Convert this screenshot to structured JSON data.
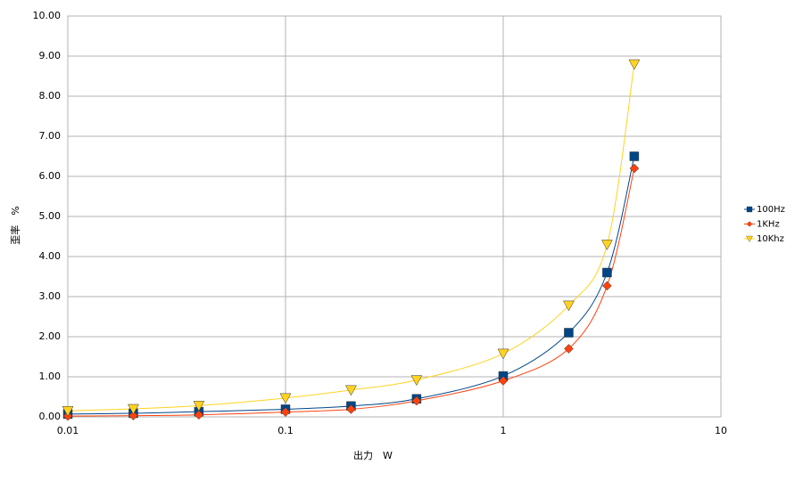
{
  "chart_data": {
    "type": "line",
    "x_label": "出力　W",
    "y_label": "歪率　%",
    "x": [
      0.01,
      0.02,
      0.04,
      0.1,
      0.2,
      0.4,
      1,
      2,
      3,
      4
    ],
    "series": [
      {
        "name": "100Hz",
        "color": "#004586",
        "marker": "square",
        "values": [
          0.07,
          0.09,
          0.13,
          0.19,
          0.27,
          0.45,
          1.02,
          2.1,
          3.6,
          6.5
        ]
      },
      {
        "name": "1KHz",
        "color": "#ff420e",
        "marker": "diamond",
        "values": [
          0.02,
          0.03,
          0.05,
          0.12,
          0.19,
          0.4,
          0.9,
          1.7,
          3.27,
          6.2
        ]
      },
      {
        "name": "10Khz",
        "color": "#ffd320",
        "marker": "triangle-down",
        "values": [
          0.15,
          0.2,
          0.28,
          0.47,
          0.67,
          0.92,
          1.58,
          2.78,
          4.3,
          8.8
        ]
      }
    ],
    "xscale": "log",
    "xlim": [
      0.01,
      10
    ],
    "xticks": [
      0.01,
      0.1,
      1,
      10
    ],
    "ylim": [
      0,
      10
    ],
    "yticks": [
      {
        "value": 0,
        "label": "0.00"
      },
      {
        "value": 1,
        "label": "1.00"
      },
      {
        "value": 2,
        "label": "2.00"
      },
      {
        "value": 3,
        "label": "3.00"
      },
      {
        "value": 4,
        "label": "4.00"
      },
      {
        "value": 5,
        "label": "5.00"
      },
      {
        "value": 6,
        "label": "6.00"
      },
      {
        "value": 7,
        "label": "7.00"
      },
      {
        "value": 8,
        "label": "8.00"
      },
      {
        "value": 9,
        "label": "9.00"
      },
      {
        "value": 10,
        "label": "10.00"
      }
    ],
    "grid": true,
    "legend": "right"
  }
}
